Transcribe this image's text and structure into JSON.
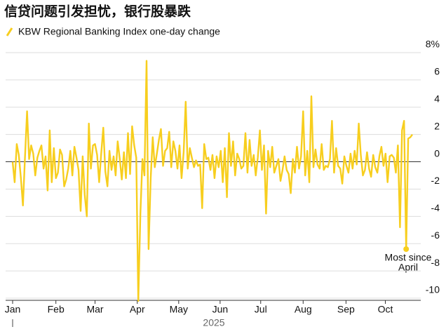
{
  "chart_data": {
    "type": "line",
    "title": "信贷问题引发担忧，银行股暴跌",
    "x_label": "2025",
    "series": [
      {
        "name": "KBW Regional Banking Index one-day change",
        "color": "#f7ce1e",
        "values": [
          0,
          -1.5,
          1.3,
          0.5,
          -1.2,
          -3.2,
          0.3,
          3.7,
          0.2,
          1.2,
          0.6,
          -1.0,
          0.3,
          0.8,
          1.2,
          -0.5,
          0.4,
          -2.1,
          2.3,
          -1.5,
          1.0,
          -1.2,
          -0.8,
          0.9,
          0.5,
          -1.8,
          -1.3,
          -0.5,
          0.8,
          -1.0,
          1.1,
          0.3,
          -0.6,
          -3.6,
          0.4,
          -2.4,
          -4.0,
          2.8,
          -0.5,
          1.2,
          1.3,
          0.5,
          -1.5,
          0.6,
          2.5,
          -0.7,
          -1.8,
          0.8,
          -0.6,
          0.4,
          -1.0,
          1.5,
          0.2,
          -1.3,
          0.7,
          -1.2,
          2.1,
          -0.9,
          2.6,
          1.2,
          0.3,
          -10.2,
          -3.8,
          0.2,
          -1.0,
          7.4,
          -6.4,
          -1.2,
          1.8,
          -0.4,
          0.6,
          1.6,
          2.4,
          -0.3,
          0.8,
          1.0,
          2.2,
          -0.4,
          1.5,
          0.8,
          -0.5,
          1.2,
          -1.2,
          0.7,
          4.4,
          -0.5,
          1.0,
          0.3,
          -0.4,
          0.1,
          -0.3,
          -0.2,
          -3.4,
          1.3,
          0.2,
          0.3,
          -0.6,
          0.5,
          -1.2,
          0.4,
          -0.4,
          0.8,
          -1.5,
          1.0,
          -2.6,
          2.1,
          -0.3,
          1.5,
          -1.0,
          0.6,
          0.2,
          -0.5,
          -0.3,
          2.1,
          -0.8,
          1.6,
          -0.3,
          0.5,
          -1.0,
          0.3,
          2.3,
          -0.6,
          1.2,
          -3.8,
          0.8,
          -0.4,
          1.1,
          -0.8,
          -0.3,
          0.2,
          -1.4,
          -0.6,
          0.4,
          -0.6,
          -0.9,
          -2.3,
          0.2,
          -0.8,
          1.1,
          -0.5,
          0.4,
          3.7,
          -1.0,
          0.8,
          -1.5,
          4.8,
          -0.4,
          0.9,
          -0.2,
          -0.5,
          1.3,
          -0.6,
          -0.3,
          -0.4,
          0.2,
          3.0,
          -0.8,
          1.0,
          -0.3,
          -0.5,
          -1.6,
          0.4,
          -0.3,
          -0.8,
          0.6,
          -0.5,
          0.8,
          -0.2,
          2.8,
          0.5,
          -1.0,
          -0.6,
          0.7,
          -0.5,
          -1.1,
          0.5,
          -0.4,
          -0.8,
          0.4,
          1.1,
          -0.3,
          0.6,
          -1.5,
          0.4,
          0.5,
          0.3,
          -0.8,
          1.2,
          -4.8,
          2.3,
          3.0,
          -6.4,
          1.7,
          1.8,
          2.0
        ]
      }
    ],
    "xlim": [
      0,
      194
    ],
    "xticks": [
      {
        "value": 0,
        "label": "Jan"
      },
      {
        "value": 21,
        "label": "Feb"
      },
      {
        "value": 40,
        "label": "Mar"
      },
      {
        "value": 60.5,
        "label": "Apr"
      },
      {
        "value": 80.6,
        "label": "May"
      },
      {
        "value": 100.7,
        "label": "Jun"
      },
      {
        "value": 120.4,
        "label": "Jul"
      },
      {
        "value": 141,
        "label": "Aug"
      },
      {
        "value": 161.8,
        "label": "Sep"
      },
      {
        "value": 180.9,
        "label": "Oct"
      }
    ],
    "ylim": [
      -10,
      8
    ],
    "yticks": [
      -10,
      -8,
      -6,
      -4,
      -2,
      0,
      2,
      4,
      6,
      {
        "value": 8,
        "label": "8%"
      }
    ],
    "grid": true,
    "annotation": [
      "Most since",
      "April"
    ]
  }
}
